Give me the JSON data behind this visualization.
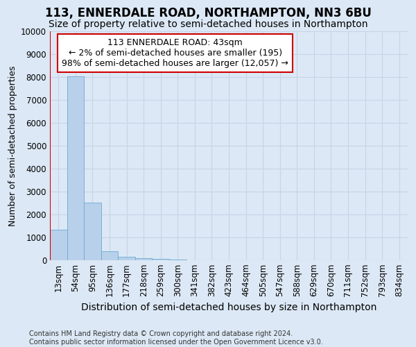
{
  "title": "113, ENNERDALE ROAD, NORTHAMPTON, NN3 6BU",
  "subtitle": "Size of property relative to semi-detached houses in Northampton",
  "xlabel_bottom": "Distribution of semi-detached houses by size in Northampton",
  "ylabel": "Number of semi-detached properties",
  "footer_line1": "Contains HM Land Registry data © Crown copyright and database right 2024.",
  "footer_line2": "Contains public sector information licensed under the Open Government Licence v3.0.",
  "bin_labels": [
    "13sqm",
    "54sqm",
    "95sqm",
    "136sqm",
    "177sqm",
    "218sqm",
    "259sqm",
    "300sqm",
    "341sqm",
    "382sqm",
    "423sqm",
    "464sqm",
    "505sqm",
    "547sqm",
    "588sqm",
    "629sqm",
    "670sqm",
    "711sqm",
    "752sqm",
    "793sqm",
    "834sqm"
  ],
  "bar_values": [
    1330,
    8020,
    2520,
    390,
    155,
    100,
    60,
    25,
    0,
    0,
    0,
    0,
    0,
    0,
    0,
    0,
    0,
    0,
    0,
    0,
    0
  ],
  "bar_color": "#b8d0ea",
  "bar_edge_color": "#6aaad4",
  "annotation_box_text": "113 ENNERDALE ROAD: 43sqm\n← 2% of semi-detached houses are smaller (195)\n98% of semi-detached houses are larger (12,057) →",
  "annotation_box_color": "#ffffff",
  "annotation_box_edge_color": "#cc0000",
  "ylim": [
    0,
    10000
  ],
  "yticks": [
    0,
    1000,
    2000,
    3000,
    4000,
    5000,
    6000,
    7000,
    8000,
    9000,
    10000
  ],
  "grid_color": "#c8d4e8",
  "bg_color": "#dce8f5",
  "title_fontsize": 12,
  "subtitle_fontsize": 10,
  "ylabel_fontsize": 9,
  "tick_fontsize": 8.5,
  "annotation_fontsize": 9,
  "footer_fontsize": 7,
  "xlabel_fontsize": 10
}
